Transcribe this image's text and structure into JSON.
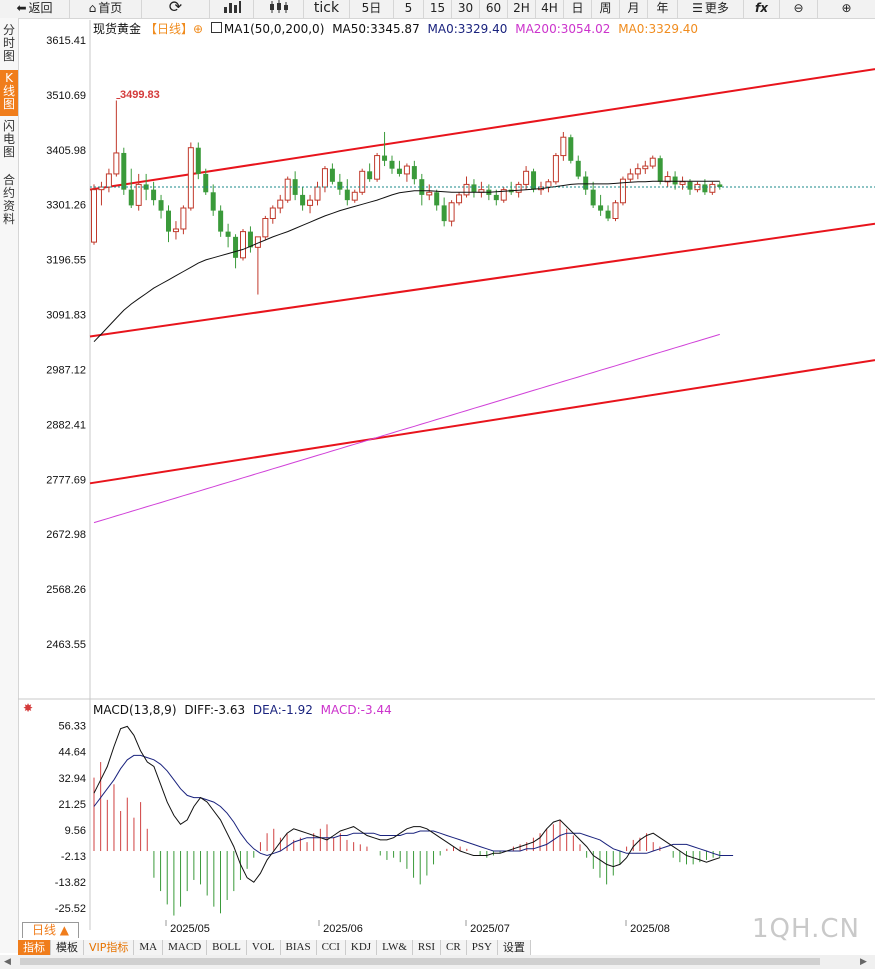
{
  "toolbar": {
    "back": "返回",
    "home": "首页",
    "tick": "tick",
    "periods": [
      "5日",
      "5",
      "15",
      "30",
      "60",
      "2H",
      "4H",
      "日",
      "周",
      "月",
      "年"
    ],
    "more": "更多",
    "fx": "fx"
  },
  "sidebar": [
    "分时图",
    "K线图",
    "闪电图",
    "合约资料"
  ],
  "legend": {
    "name": "现货黄金",
    "period": "【日线】",
    "ma1": "MA1(50,0,200,0)",
    "ma50": "MA50:3345.87",
    "ma0a": "MA0:3329.40",
    "ma200": "MA200:3054.02",
    "ma0b": "MA0:3329.40",
    "colors": {
      "ma50": "#111111",
      "ma0a": "#1a237e",
      "ma200": "#cc33cc",
      "ma0b": "#f08c1e"
    }
  },
  "price_axis": [
    "3615.41",
    "3510.69",
    "3405.98",
    "3301.26",
    "3196.55",
    "3091.83",
    "2987.12",
    "2882.41",
    "2777.69",
    "2672.98",
    "2568.26",
    "2463.55"
  ],
  "high_label": "3499.83",
  "macd_legend": {
    "title": "MACD(13,8,9)",
    "diff": "DIFF:-3.63",
    "dea": "DEA:-1.92",
    "macd": "MACD:-3.44"
  },
  "macd_axis": [
    "56.33",
    "44.64",
    "32.94",
    "21.25",
    "9.56",
    "-2.13",
    "-13.82",
    "-25.52"
  ],
  "date_labels": [
    "2025/05",
    "2025/06",
    "2025/07",
    "2025/08"
  ],
  "bottom": {
    "period_tab": "日线 ▲",
    "indicators": [
      "指标",
      "模板",
      "VIP指标",
      "MA",
      "MACD",
      "BOLL",
      "VOL",
      "BIAS",
      "CCI",
      "KDJ",
      "LW&",
      "RSI",
      "CR",
      "PSY",
      "设置"
    ]
  },
  "watermark": "1QH.CN",
  "chart_data": {
    "type": "candlestick",
    "instrument": "现货黄金",
    "period": "日线",
    "ylim": [
      2463.55,
      3615.41
    ],
    "close_last": 3335,
    "ohlc": [
      [
        3230,
        3340,
        3225,
        3330
      ],
      [
        3330,
        3345,
        3300,
        3335
      ],
      [
        3335,
        3370,
        3325,
        3360
      ],
      [
        3360,
        3500,
        3355,
        3400
      ],
      [
        3400,
        3410,
        3320,
        3330
      ],
      [
        3330,
        3370,
        3295,
        3300
      ],
      [
        3300,
        3360,
        3290,
        3340
      ],
      [
        3340,
        3360,
        3310,
        3330
      ],
      [
        3330,
        3345,
        3300,
        3310
      ],
      [
        3310,
        3320,
        3275,
        3290
      ],
      [
        3290,
        3300,
        3230,
        3250
      ],
      [
        3250,
        3270,
        3235,
        3255
      ],
      [
        3255,
        3300,
        3245,
        3295
      ],
      [
        3295,
        3420,
        3290,
        3410
      ],
      [
        3410,
        3420,
        3350,
        3360
      ],
      [
        3360,
        3370,
        3320,
        3325
      ],
      [
        3325,
        3340,
        3280,
        3290
      ],
      [
        3290,
        3300,
        3240,
        3250
      ],
      [
        3250,
        3265,
        3220,
        3240
      ],
      [
        3240,
        3245,
        3180,
        3200
      ],
      [
        3200,
        3255,
        3195,
        3250
      ],
      [
        3250,
        3260,
        3210,
        3220
      ],
      [
        3220,
        3240,
        3130,
        3240
      ],
      [
        3240,
        3280,
        3235,
        3275
      ],
      [
        3275,
        3300,
        3265,
        3295
      ],
      [
        3295,
        3320,
        3285,
        3310
      ],
      [
        3310,
        3355,
        3305,
        3350
      ],
      [
        3350,
        3365,
        3310,
        3320
      ],
      [
        3320,
        3335,
        3290,
        3300
      ],
      [
        3300,
        3320,
        3285,
        3310
      ],
      [
        3310,
        3345,
        3300,
        3335
      ],
      [
        3335,
        3375,
        3325,
        3370
      ],
      [
        3370,
        3380,
        3340,
        3345
      ],
      [
        3345,
        3360,
        3320,
        3330
      ],
      [
        3330,
        3350,
        3300,
        3310
      ],
      [
        3310,
        3330,
        3305,
        3325
      ],
      [
        3325,
        3370,
        3320,
        3365
      ],
      [
        3365,
        3380,
        3345,
        3350
      ],
      [
        3350,
        3400,
        3345,
        3395
      ],
      [
        3395,
        3440,
        3375,
        3385
      ],
      [
        3385,
        3395,
        3360,
        3370
      ],
      [
        3370,
        3385,
        3355,
        3360
      ],
      [
        3360,
        3380,
        3345,
        3375
      ],
      [
        3375,
        3385,
        3340,
        3350
      ],
      [
        3350,
        3360,
        3300,
        3320
      ],
      [
        3320,
        3340,
        3310,
        3325
      ],
      [
        3325,
        3330,
        3290,
        3300
      ],
      [
        3300,
        3315,
        3260,
        3270
      ],
      [
        3270,
        3310,
        3260,
        3305
      ],
      [
        3305,
        3325,
        3300,
        3320
      ],
      [
        3320,
        3355,
        3315,
        3340
      ],
      [
        3340,
        3350,
        3315,
        3325
      ],
      [
        3325,
        3345,
        3315,
        3330
      ],
      [
        3330,
        3340,
        3310,
        3320
      ],
      [
        3320,
        3330,
        3300,
        3310
      ],
      [
        3310,
        3335,
        3305,
        3330
      ],
      [
        3330,
        3345,
        3320,
        3325
      ],
      [
        3325,
        3345,
        3315,
        3340
      ],
      [
        3340,
        3375,
        3330,
        3365
      ],
      [
        3365,
        3370,
        3325,
        3330
      ],
      [
        3330,
        3345,
        3320,
        3335
      ],
      [
        3335,
        3350,
        3325,
        3345
      ],
      [
        3345,
        3400,
        3340,
        3395
      ],
      [
        3395,
        3440,
        3385,
        3430
      ],
      [
        3430,
        3435,
        3380,
        3385
      ],
      [
        3385,
        3395,
        3350,
        3355
      ],
      [
        3355,
        3365,
        3320,
        3330
      ],
      [
        3330,
        3345,
        3295,
        3300
      ],
      [
        3300,
        3320,
        3280,
        3290
      ],
      [
        3290,
        3300,
        3270,
        3275
      ],
      [
        3275,
        3310,
        3270,
        3305
      ],
      [
        3305,
        3355,
        3300,
        3350
      ],
      [
        3350,
        3370,
        3345,
        3360
      ],
      [
        3360,
        3380,
        3350,
        3370
      ],
      [
        3370,
        3385,
        3360,
        3375
      ],
      [
        3375,
        3395,
        3370,
        3390
      ],
      [
        3390,
        3395,
        3340,
        3345
      ],
      [
        3345,
        3365,
        3335,
        3355
      ],
      [
        3355,
        3365,
        3330,
        3340
      ],
      [
        3340,
        3355,
        3330,
        3345
      ],
      [
        3345,
        3350,
        3320,
        3330
      ],
      [
        3330,
        3345,
        3325,
        3340
      ],
      [
        3340,
        3350,
        3320,
        3325
      ],
      [
        3325,
        3345,
        3320,
        3340
      ],
      [
        3340,
        3345,
        3330,
        3335
      ]
    ],
    "ma50": [
      3040,
      3055,
      3070,
      3085,
      3100,
      3112,
      3122,
      3132,
      3142,
      3150,
      3158,
      3166,
      3174,
      3182,
      3190,
      3196,
      3200,
      3204,
      3208,
      3212,
      3216,
      3222,
      3228,
      3234,
      3240,
      3245,
      3250,
      3256,
      3262,
      3268,
      3274,
      3280,
      3285,
      3290,
      3294,
      3298,
      3302,
      3306,
      3310,
      3315,
      3320,
      3324,
      3326,
      3328,
      3328,
      3328,
      3327,
      3326,
      3325,
      3325,
      3325,
      3325,
      3325,
      3325,
      3326,
      3327,
      3328,
      3329,
      3330,
      3331,
      3332,
      3334,
      3336,
      3338,
      3340,
      3341,
      3341,
      3341,
      3341,
      3341,
      3342,
      3343,
      3344,
      3345,
      3345,
      3346,
      3346,
      3346,
      3346,
      3346,
      3346,
      3346,
      3346,
      3346,
      3346
    ],
    "ma200_range": [
      2695,
      3054.02
    ],
    "trend_lines": [
      {
        "from": [
          0,
          3330
        ],
        "to": "right",
        "end": 3560,
        "color": "#e8141c"
      },
      {
        "from": [
          0,
          3050
        ],
        "to": "right",
        "end": 3265,
        "color": "#e8141c"
      },
      {
        "from": [
          0,
          2770
        ],
        "to": "right",
        "end": 3005,
        "color": "#e8141c"
      }
    ],
    "macd": {
      "ylim": [
        -31,
        58
      ],
      "diff": [
        26,
        32,
        38,
        47,
        55,
        56,
        52,
        45,
        40,
        38,
        30,
        22,
        16,
        12,
        14,
        20,
        24,
        22,
        18,
        14,
        8,
        2,
        -6,
        -12,
        -14,
        -10,
        -4,
        0,
        4,
        8,
        10,
        9,
        8,
        7,
        6,
        5,
        7,
        9,
        10,
        11,
        9,
        7,
        6,
        5,
        5,
        6,
        8,
        10,
        11,
        11,
        10,
        8,
        6,
        4,
        2,
        0,
        -1,
        -2,
        -2,
        -2,
        -1,
        -1,
        0,
        1,
        2,
        3,
        4,
        6,
        10,
        13,
        14,
        11,
        8,
        5,
        2,
        -2,
        -4,
        -6,
        -7,
        -6,
        -3,
        2,
        5,
        7,
        8,
        6,
        4,
        2,
        0,
        -2,
        -3,
        -4,
        -5,
        -4,
        -3
      ],
      "dea": [
        20,
        24,
        28,
        32,
        37,
        41,
        43,
        43,
        42,
        41,
        39,
        36,
        32,
        28,
        25,
        24,
        24,
        23,
        22,
        20,
        17,
        13,
        8,
        4,
        1,
        -1,
        -2,
        -1,
        0,
        2,
        4,
        5,
        6,
        6,
        6,
        6,
        6,
        7,
        7,
        8,
        8,
        8,
        8,
        7,
        7,
        7,
        7,
        8,
        8,
        9,
        9,
        9,
        8,
        7,
        6,
        5,
        4,
        3,
        2,
        1,
        0,
        0,
        0,
        0,
        0,
        1,
        1,
        2,
        3,
        5,
        7,
        8,
        8,
        8,
        7,
        6,
        5,
        3,
        1,
        0,
        -1,
        -1,
        -1,
        -1,
        0,
        1,
        2,
        3,
        3,
        3,
        2,
        1,
        0,
        -1,
        -2,
        -2,
        -2
      ],
      "hist": [
        33,
        40,
        23,
        30,
        18,
        24,
        15,
        22,
        10,
        -12,
        -18,
        -24,
        -29,
        -25,
        -18,
        -13,
        -15,
        -20,
        -25,
        -28,
        -22,
        -18,
        -13,
        -8,
        -3,
        4,
        8,
        10,
        6,
        8,
        5,
        6,
        4,
        8,
        10,
        12,
        6,
        8,
        5,
        4,
        3,
        2,
        0,
        -2,
        -4,
        -3,
        -5,
        -8,
        -12,
        -15,
        -11,
        -6,
        -2,
        1,
        2,
        2,
        1,
        0,
        -2,
        -3,
        -2,
        -1,
        0,
        2,
        3,
        4,
        6,
        8,
        10,
        12,
        14,
        10,
        7,
        3,
        -3,
        -8,
        -12,
        -15,
        -11,
        -6,
        2,
        5,
        6,
        8,
        4,
        2,
        0,
        -3,
        -5,
        -6,
        -6,
        -5,
        -4,
        -3,
        -3
      ]
    }
  }
}
